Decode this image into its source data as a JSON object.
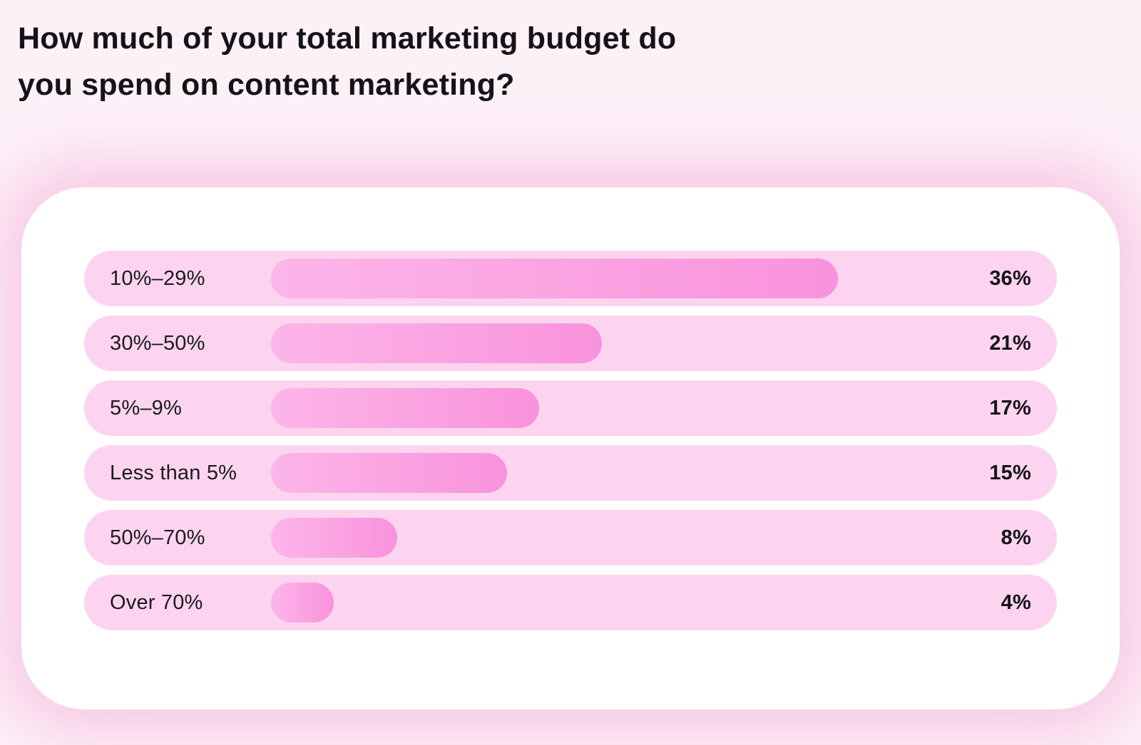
{
  "page": {
    "title_line1": "How much of your total marketing budget do",
    "title_line2": "you spend on content marketing?"
  },
  "chart_data": {
    "type": "bar",
    "orientation": "horizontal",
    "title": "How much of your total marketing budget do you spend on content marketing?",
    "categories": [
      "10%–29%",
      "30%–50%",
      "5%–9%",
      "Less than 5%",
      "50%–70%",
      "Over 70%"
    ],
    "values": [
      36,
      21,
      17,
      15,
      8,
      4
    ],
    "value_labels": [
      "36%",
      "21%",
      "17%",
      "15%",
      "8%",
      "4%"
    ],
    "xlabel": "",
    "ylabel": "",
    "xlim": [
      0,
      44
    ],
    "grid": false,
    "legend": "none",
    "sort_order": "descending",
    "colors": {
      "page_background": "#fdf1f8",
      "card_background": "#ffffff",
      "card_glow": "#f7c4e2",
      "row_pill_background": "#fcd4ef",
      "bar_gradient_start": "#fcb6e9",
      "bar_gradient_end": "#f992dc",
      "title_text": "#141418",
      "label_text": "#1a1a1e",
      "value_text": "#141418"
    }
  }
}
